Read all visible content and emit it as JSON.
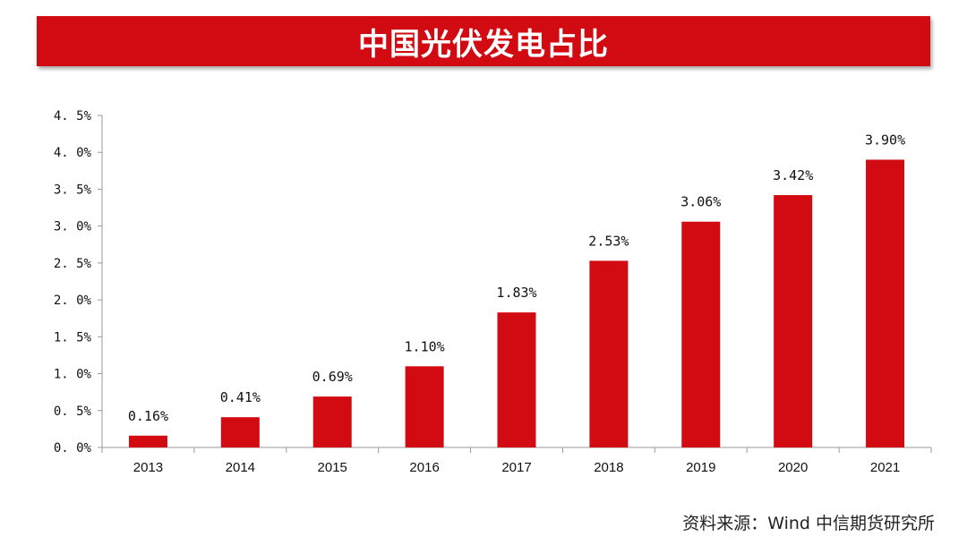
{
  "title": "中国光伏发电占比",
  "source": "资料来源：Wind 中信期货研究所",
  "colors": {
    "banner": "#d20a11",
    "bar": "#d20a11",
    "axis": "#999999"
  },
  "chart_data": {
    "type": "bar",
    "title": "中国光伏发电占比",
    "xlabel": "",
    "ylabel": "",
    "categories": [
      "2013",
      "2014",
      "2015",
      "2016",
      "2017",
      "2018",
      "2019",
      "2020",
      "2021"
    ],
    "values": [
      0.16,
      0.41,
      0.69,
      1.1,
      1.83,
      2.53,
      3.06,
      3.42,
      3.9
    ],
    "data_labels": [
      "0.16%",
      "0.41%",
      "0.69%",
      "1.10%",
      "1.83%",
      "2.53%",
      "3.06%",
      "3.42%",
      "3.90%"
    ],
    "ylim": [
      0,
      4.5
    ],
    "yticks": [
      0,
      0.5,
      1.0,
      1.5,
      2.0,
      2.5,
      3.0,
      3.5,
      4.0,
      4.5
    ],
    "ytick_labels": [
      "0. 0%",
      "0. 5%",
      "1. 0%",
      "1. 5%",
      "2. 0%",
      "2. 5%",
      "3. 0%",
      "3. 5%",
      "4. 0%",
      "4. 5%"
    ],
    "grid": false,
    "legend": "none"
  }
}
